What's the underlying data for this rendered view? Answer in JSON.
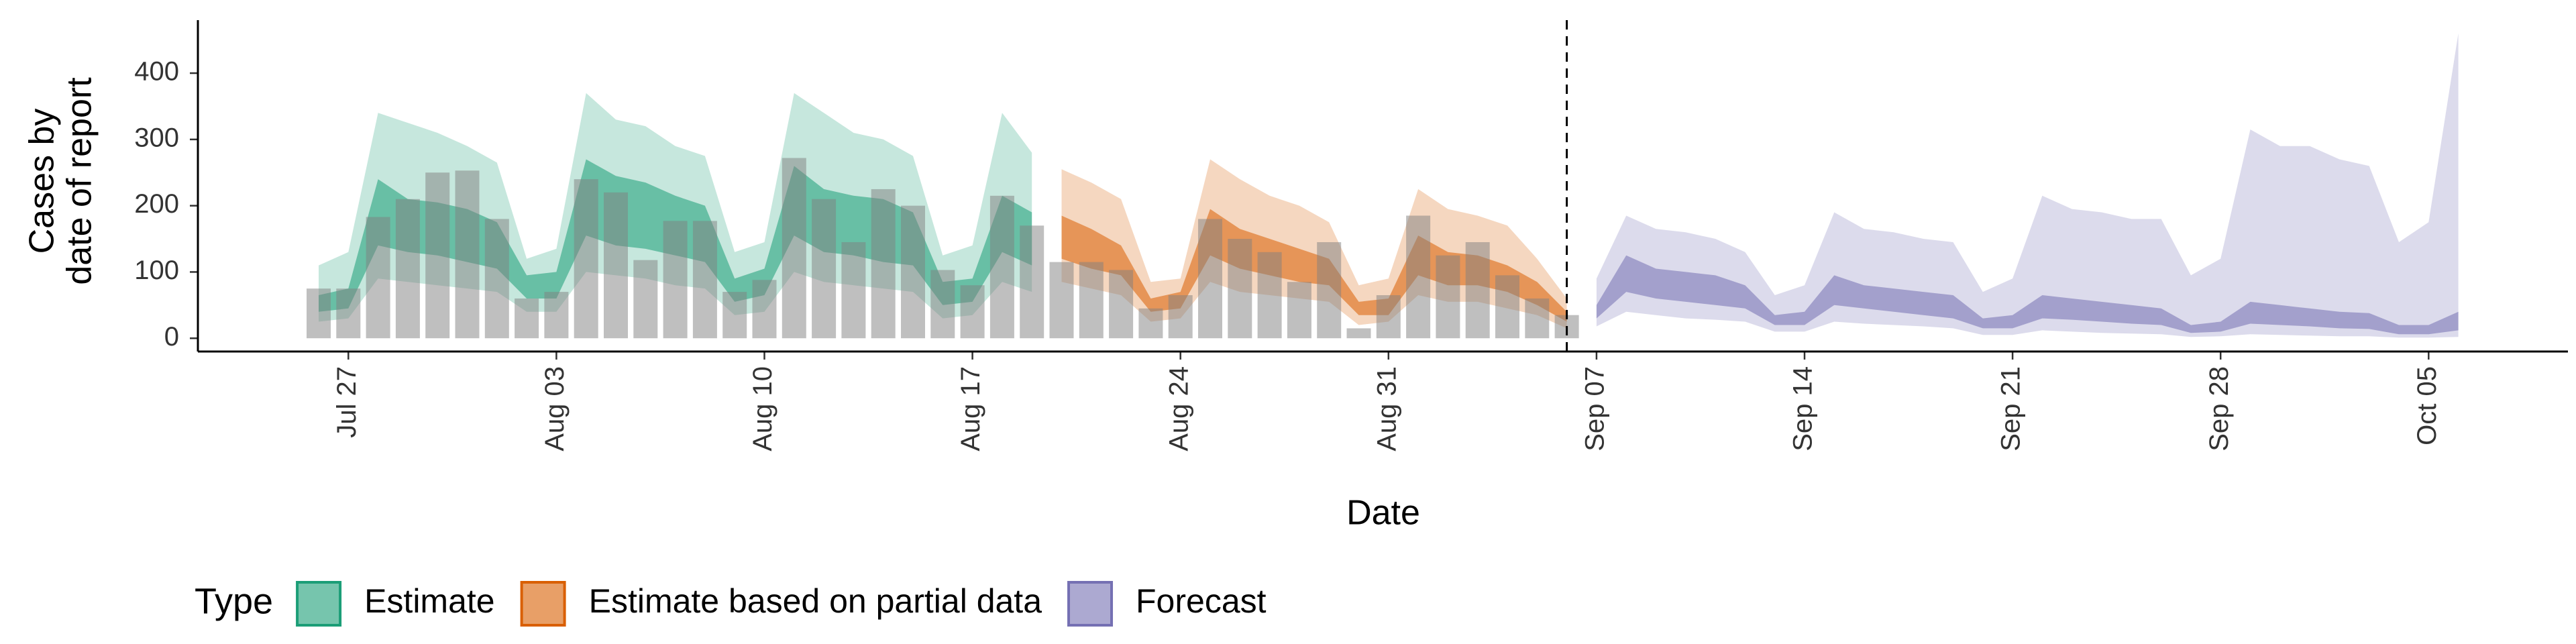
{
  "chart_data": {
    "type": "band",
    "xlabel": "Date",
    "ylabel": [
      "Cases by",
      "date of report"
    ],
    "ylim": [
      -20,
      480
    ],
    "yticks": [
      0,
      100,
      200,
      300,
      400
    ],
    "xticks": [
      "Jul 27",
      "Aug 03",
      "Aug 10",
      "Aug 17",
      "Aug 24",
      "Aug 31",
      "Sep 07",
      "Sep 14",
      "Sep 21",
      "Sep 28",
      "Oct 05"
    ],
    "legend_title": "Type",
    "bars": {
      "color": "#7f7f7f",
      "x": [
        "Jul 26",
        "Jul 27",
        "Jul 28",
        "Jul 29",
        "Jul 30",
        "Jul 31",
        "Aug 01",
        "Aug 02",
        "Aug 03",
        "Aug 04",
        "Aug 05",
        "Aug 06",
        "Aug 07",
        "Aug 08",
        "Aug 09",
        "Aug 10",
        "Aug 11",
        "Aug 12",
        "Aug 13",
        "Aug 14",
        "Aug 15",
        "Aug 16",
        "Aug 17",
        "Aug 18",
        "Aug 19",
        "Aug 20",
        "Aug 21",
        "Aug 22",
        "Aug 23",
        "Aug 24",
        "Aug 25",
        "Aug 26",
        "Aug 27",
        "Aug 28",
        "Aug 29",
        "Aug 30",
        "Aug 31",
        "Sep 01",
        "Sep 02",
        "Sep 03",
        "Sep 04",
        "Sep 05",
        "Sep 06"
      ],
      "values": [
        75,
        75,
        183,
        210,
        250,
        253,
        180,
        60,
        70,
        240,
        220,
        118,
        177,
        177,
        70,
        88,
        272,
        210,
        145,
        225,
        200,
        103,
        80,
        215,
        170,
        115,
        115,
        103,
        45,
        65,
        180,
        150,
        130,
        85,
        145,
        15,
        65,
        185,
        125,
        145,
        95,
        60,
        35
      ]
    },
    "series": [
      {
        "name": "Estimate",
        "color": "#1b9e77",
        "x": [
          "Jul 26",
          "Jul 27",
          "Jul 28",
          "Jul 29",
          "Jul 30",
          "Jul 31",
          "Aug 01",
          "Aug 02",
          "Aug 03",
          "Aug 04",
          "Aug 05",
          "Aug 06",
          "Aug 07",
          "Aug 08",
          "Aug 09",
          "Aug 10",
          "Aug 11",
          "Aug 12",
          "Aug 13",
          "Aug 14",
          "Aug 15",
          "Aug 16",
          "Aug 17",
          "Aug 18",
          "Aug 19"
        ],
        "upper90": [
          110,
          130,
          340,
          325,
          310,
          290,
          265,
          120,
          135,
          370,
          330,
          320,
          290,
          275,
          130,
          145,
          370,
          340,
          310,
          300,
          275,
          125,
          140,
          340,
          280
        ],
        "upper50": [
          65,
          75,
          240,
          210,
          205,
          195,
          175,
          95,
          100,
          270,
          245,
          235,
          215,
          200,
          90,
          105,
          260,
          225,
          215,
          210,
          190,
          85,
          90,
          215,
          190
        ],
        "lower50": [
          40,
          45,
          140,
          130,
          125,
          115,
          105,
          60,
          60,
          155,
          140,
          135,
          125,
          115,
          55,
          65,
          155,
          130,
          125,
          115,
          110,
          50,
          55,
          130,
          110
        ],
        "lower90": [
          25,
          30,
          90,
          85,
          80,
          75,
          70,
          40,
          40,
          100,
          95,
          90,
          80,
          75,
          35,
          40,
          100,
          85,
          80,
          75,
          70,
          30,
          35,
          85,
          70
        ]
      },
      {
        "name": "Estimate based on partial data",
        "color": "#d95f02",
        "x": [
          "Aug 20",
          "Aug 21",
          "Aug 22",
          "Aug 23",
          "Aug 24",
          "Aug 25",
          "Aug 26",
          "Aug 27",
          "Aug 28",
          "Aug 29",
          "Aug 30",
          "Aug 31",
          "Sep 01",
          "Sep 02",
          "Sep 03",
          "Sep 04",
          "Sep 05",
          "Sep 06"
        ],
        "upper90": [
          255,
          235,
          210,
          85,
          90,
          270,
          240,
          215,
          200,
          175,
          80,
          90,
          225,
          195,
          185,
          170,
          120,
          60
        ],
        "upper50": [
          185,
          165,
          140,
          60,
          70,
          195,
          165,
          150,
          135,
          120,
          55,
          60,
          155,
          130,
          125,
          110,
          85,
          40
        ],
        "lower50": [
          120,
          105,
          95,
          40,
          45,
          125,
          105,
          95,
          85,
          80,
          35,
          35,
          95,
          80,
          80,
          70,
          50,
          25
        ],
        "lower90": [
          85,
          75,
          65,
          25,
          30,
          85,
          70,
          65,
          60,
          55,
          20,
          25,
          65,
          55,
          55,
          45,
          35,
          15
        ]
      },
      {
        "name": "Forecast",
        "color": "#7570b3",
        "x": [
          "Sep 07",
          "Sep 08",
          "Sep 09",
          "Sep 10",
          "Sep 11",
          "Sep 12",
          "Sep 13",
          "Sep 14",
          "Sep 15",
          "Sep 16",
          "Sep 17",
          "Sep 18",
          "Sep 19",
          "Sep 20",
          "Sep 21",
          "Sep 22",
          "Sep 23",
          "Sep 24",
          "Sep 25",
          "Sep 26",
          "Sep 27",
          "Sep 28",
          "Sep 29",
          "Sep 30",
          "Oct 01",
          "Oct 02",
          "Oct 03",
          "Oct 04",
          "Oct 05",
          "Oct 06"
        ],
        "upper90": [
          90,
          185,
          165,
          160,
          150,
          130,
          65,
          80,
          190,
          165,
          160,
          150,
          145,
          70,
          90,
          215,
          195,
          190,
          180,
          180,
          95,
          120,
          315,
          290,
          290,
          270,
          260,
          145,
          175,
          460
        ],
        "upper50": [
          50,
          125,
          105,
          100,
          95,
          80,
          35,
          40,
          95,
          80,
          75,
          70,
          65,
          30,
          35,
          65,
          60,
          55,
          50,
          45,
          20,
          25,
          55,
          50,
          45,
          40,
          38,
          20,
          20,
          40
        ],
        "lower50": [
          30,
          70,
          60,
          55,
          50,
          45,
          20,
          20,
          50,
          45,
          40,
          35,
          30,
          15,
          15,
          30,
          28,
          25,
          22,
          20,
          8,
          10,
          22,
          20,
          18,
          15,
          14,
          6,
          6,
          12
        ],
        "lower90": [
          18,
          40,
          35,
          30,
          28,
          25,
          10,
          10,
          25,
          22,
          20,
          18,
          15,
          5,
          5,
          12,
          10,
          8,
          7,
          6,
          2,
          3,
          6,
          5,
          4,
          3,
          3,
          1,
          1,
          2
        ]
      }
    ]
  }
}
